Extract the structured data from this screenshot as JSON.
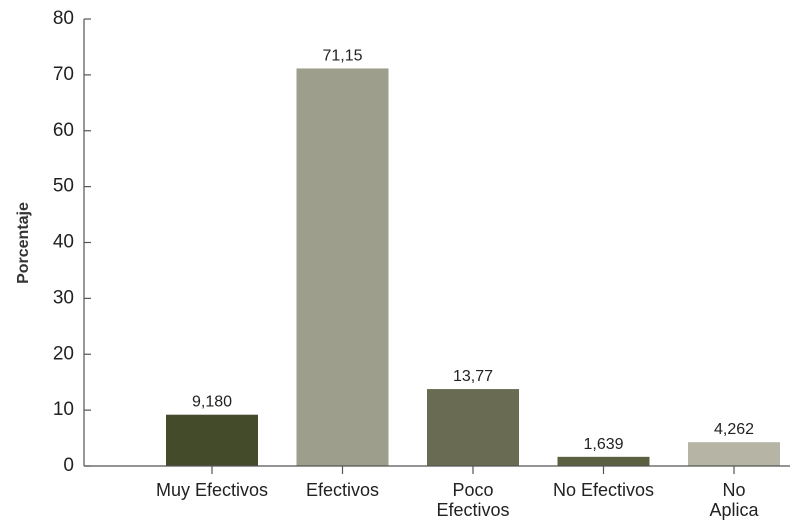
{
  "chart_data": {
    "type": "bar",
    "title": "",
    "xlabel": "",
    "ylabel": "Porcentaje",
    "ylim": [
      0,
      80
    ],
    "yticks": [
      0,
      10,
      20,
      30,
      40,
      50,
      60,
      70,
      80
    ],
    "ytick_labels": [
      "0",
      "10",
      "20",
      "30",
      "40",
      "50",
      "60",
      "70",
      "80"
    ],
    "grid": false,
    "categories": [
      [
        "Muy Efectivos"
      ],
      [
        "Efectivos"
      ],
      [
        "Poco",
        "Efectivos"
      ],
      [
        "No Efectivos"
      ],
      [
        "No",
        "Aplica"
      ]
    ],
    "values": [
      9.18,
      71.15,
      13.77,
      1.639,
      4.262
    ],
    "data_labels": [
      "9,180",
      "71,15",
      "13,77",
      "1,639",
      "4,262"
    ],
    "colors": [
      "#434b2a",
      "#9e9e8c",
      "#696b52",
      "#5a6040",
      "#b5b4a5"
    ]
  }
}
